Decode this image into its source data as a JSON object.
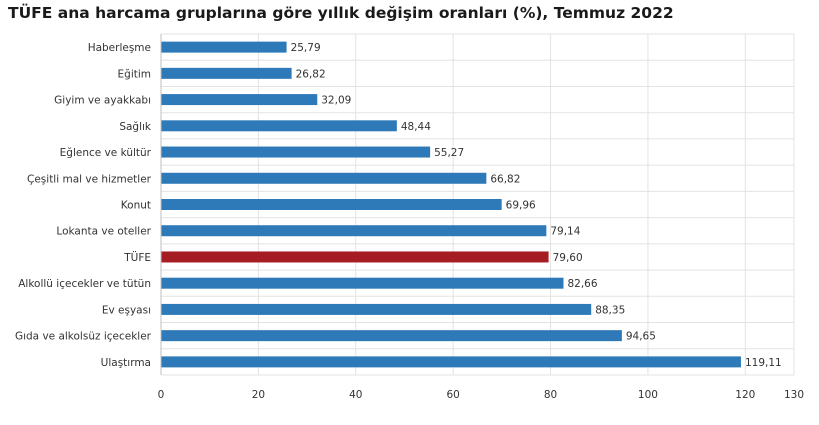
{
  "chart_data": {
    "type": "bar",
    "orientation": "horizontal",
    "title": "TÜFE ana harcama gruplarına göre yıllık değişim oranları (%), Temmuz 2022",
    "categories": [
      "Haberleşme",
      "Eğitim",
      "Giyim ve ayakkabı",
      "Sağlık",
      "Eğlence ve kültür",
      "Çeşitli mal ve hizmetler",
      "Konut",
      "Lokanta ve oteller",
      "TÜFE",
      "Alkollü içecekler ve tütün",
      "Ev eşyası",
      "Gıda ve alkolsüz içecekler",
      "Ulaştırma"
    ],
    "values": [
      25.79,
      26.82,
      32.09,
      48.44,
      55.27,
      66.82,
      69.96,
      79.14,
      79.6,
      82.66,
      88.35,
      94.65,
      119.11
    ],
    "value_labels": [
      "25,79",
      "26,82",
      "32,09",
      "48,44",
      "55,27",
      "66,82",
      "69,96",
      "79,14",
      "79,60",
      "82,66",
      "88,35",
      "94,65",
      "119,11"
    ],
    "highlight_category": "TÜFE",
    "xlim": [
      0,
      130
    ],
    "xticks": [
      0,
      20,
      40,
      60,
      80,
      100,
      120,
      130
    ],
    "grid": true,
    "colors": {
      "bar": "#2e7ab8",
      "highlight": "#a51d22",
      "grid": "#e3e3e3",
      "axis": "#bfbfbf"
    }
  }
}
